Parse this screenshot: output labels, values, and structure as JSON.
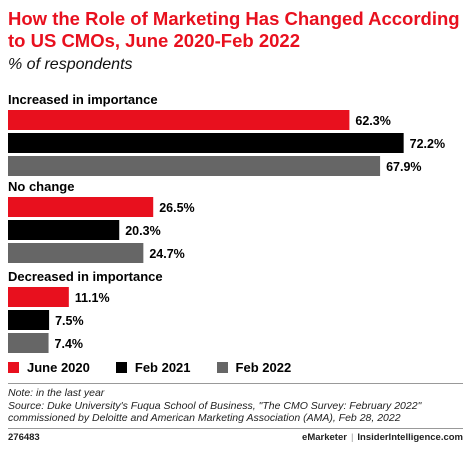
{
  "header": {
    "title": "How the Role of Marketing Has Changed According to US CMOs, June 2020-Feb 2022",
    "subtitle": "% of respondents"
  },
  "chart_data": {
    "type": "bar",
    "orientation": "horizontal",
    "categories": [
      "Increased in importance",
      "No change",
      "Decreased in importance"
    ],
    "series": [
      {
        "name": "June 2020",
        "color": "#e8101e",
        "values": [
          62.3,
          26.5,
          11.1
        ],
        "labels": [
          "62.3%",
          "26.5%",
          "11.1%"
        ]
      },
      {
        "name": "Feb 2021",
        "color": "#000000",
        "values": [
          72.2,
          20.3,
          7.5
        ],
        "labels": [
          "72.2%",
          "20.3%",
          "7.5%"
        ]
      },
      {
        "name": "Feb 2022",
        "color": "#666666",
        "values": [
          67.9,
          24.7,
          7.4
        ],
        "labels": [
          "67.9%",
          "24.7%",
          "7.4%"
        ]
      }
    ],
    "title": "How the Role of Marketing Has Changed According to US CMOs, June 2020-Feb 2022",
    "subtitle": "% of respondents",
    "grid": false,
    "legend_position": "bottom-left"
  },
  "note": {
    "line1": "Note: in the last year",
    "line2": "Source: Duke University's Fuqua School of Business, \"The CMO Survey: February 2022\" commissioned by Deloitte and American Marketing Association (AMA), Feb 28, 2022"
  },
  "footer": {
    "id": "276483",
    "brand": "eMarketer",
    "divider": "|",
    "site": "InsiderIntelligence.com"
  }
}
